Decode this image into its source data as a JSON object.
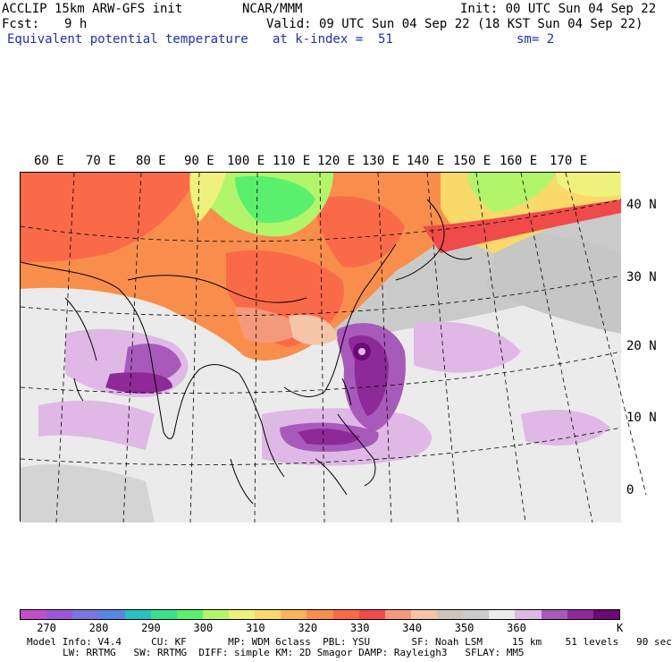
{
  "header": {
    "model": "ACCLIP 15km ARW-GFS init",
    "org": "NCAR/MMM",
    "init": "Init: 00 UTC Sun 04 Sep 22",
    "fcst_label": "Fcst:",
    "fcst_value": "9 h",
    "valid": "Valid: 09 UTC Sun 04 Sep 22 (18 KST Sun 04 Sep 22)",
    "field": "Equivalent potential temperature",
    "level": "at k-index =  51",
    "smooth": "sm= 2"
  },
  "map": {
    "lon_labels": [
      "60 E",
      "70 E",
      "80 E",
      "90 E",
      "100 E",
      "110 E",
      "120 E",
      "130 E",
      "140 E",
      "150 E",
      "160 E",
      "170 E"
    ],
    "lat_labels": [
      "40 N",
      "30 N",
      "20 N",
      "10 N",
      "0"
    ]
  },
  "colorbar": {
    "colors": [
      "#c24fc8",
      "#9a57d8",
      "#7b76e0",
      "#5a86e4",
      "#28c0c0",
      "#3de08a",
      "#5bef6e",
      "#b3f56a",
      "#eef27a",
      "#f9d96a",
      "#f8b45a",
      "#f98e4c",
      "#fa6a48",
      "#f04a4a",
      "#f49a7c",
      "#f6c4a8",
      "#d2c3b8",
      "#cacaca",
      "#ebebeb",
      "#e0b8e6",
      "#a85aba",
      "#8e2a98",
      "#6a0a74"
    ],
    "labels": [
      "270",
      "280",
      "290",
      "300",
      "310",
      "320",
      "330",
      "340",
      "350",
      "360",
      "K"
    ],
    "unit": "K"
  },
  "footer": {
    "line1": "Model Info: V4.4     CU: KF       MP: WDM 6class  PBL: YSU       SF: Noah LSM     15 km    51 levels   90 sec",
    "line2": "LW: RRTMG   SW: RRTMG  DIFF: simple KM: 2D Smagor DAMP: Rayleigh3   SFLAY: MM5"
  }
}
